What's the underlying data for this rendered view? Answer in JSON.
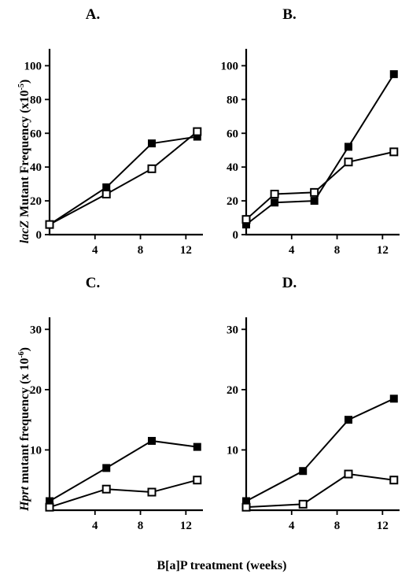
{
  "figure": {
    "xlabel": "B[a]P treatment (weeks)",
    "ylabel_top_italic": "lacZ",
    "ylabel_top_rest": " Mutant Frequency (x10",
    "ylabel_top_exp": "-5",
    "ylabel_top_close": ")",
    "ylabel_bottom_italic": "Hprt",
    "ylabel_bottom_rest": " mutant frequency (x 10",
    "ylabel_bottom_exp": "-6",
    "ylabel_bottom_close": ")"
  },
  "chart_data": [
    {
      "panel": "A.",
      "type": "line",
      "xlim": [
        0,
        13.5
      ],
      "ylim": [
        0,
        110
      ],
      "xticks": [
        4,
        8,
        12
      ],
      "yticks": [
        0,
        20,
        40,
        60,
        80,
        100
      ],
      "series": [
        {
          "marker": "filled-square",
          "x": [
            0,
            5,
            9,
            13
          ],
          "y": [
            6,
            28,
            54,
            58
          ]
        },
        {
          "marker": "open-square",
          "x": [
            0,
            5,
            9,
            13
          ],
          "y": [
            6,
            24,
            39,
            61
          ]
        }
      ]
    },
    {
      "panel": "B.",
      "type": "line",
      "xlim": [
        0,
        13.5
      ],
      "ylim": [
        0,
        110
      ],
      "xticks": [
        4,
        8,
        12
      ],
      "yticks": [
        0,
        20,
        40,
        60,
        80,
        100
      ],
      "series": [
        {
          "marker": "filled-square",
          "x": [
            0,
            2.5,
            6,
            9,
            13
          ],
          "y": [
            6,
            19,
            20,
            52,
            95
          ]
        },
        {
          "marker": "open-square",
          "x": [
            0,
            2.5,
            6,
            9,
            13
          ],
          "y": [
            9,
            24,
            25,
            43,
            49
          ]
        }
      ]
    },
    {
      "panel": "C.",
      "type": "line",
      "xlim": [
        0,
        13.5
      ],
      "ylim": [
        0,
        32
      ],
      "xticks": [
        4,
        8,
        12
      ],
      "yticks": [
        10,
        20,
        30
      ],
      "series": [
        {
          "marker": "filled-square",
          "x": [
            0,
            5,
            9,
            13
          ],
          "y": [
            1.5,
            7,
            11.5,
            10.5
          ]
        },
        {
          "marker": "open-square",
          "x": [
            0,
            5,
            9,
            13
          ],
          "y": [
            0.5,
            3.5,
            3,
            5
          ]
        }
      ]
    },
    {
      "panel": "D.",
      "type": "line",
      "xlim": [
        0,
        13.5
      ],
      "ylim": [
        0,
        32
      ],
      "xticks": [
        4,
        8,
        12
      ],
      "yticks": [
        10,
        20,
        30
      ],
      "series": [
        {
          "marker": "filled-square",
          "x": [
            0,
            5,
            9,
            13
          ],
          "y": [
            1.5,
            6.5,
            15,
            18.5
          ]
        },
        {
          "marker": "open-square",
          "x": [
            0,
            5,
            9,
            13
          ],
          "y": [
            0.5,
            1,
            6,
            5
          ]
        }
      ]
    }
  ]
}
